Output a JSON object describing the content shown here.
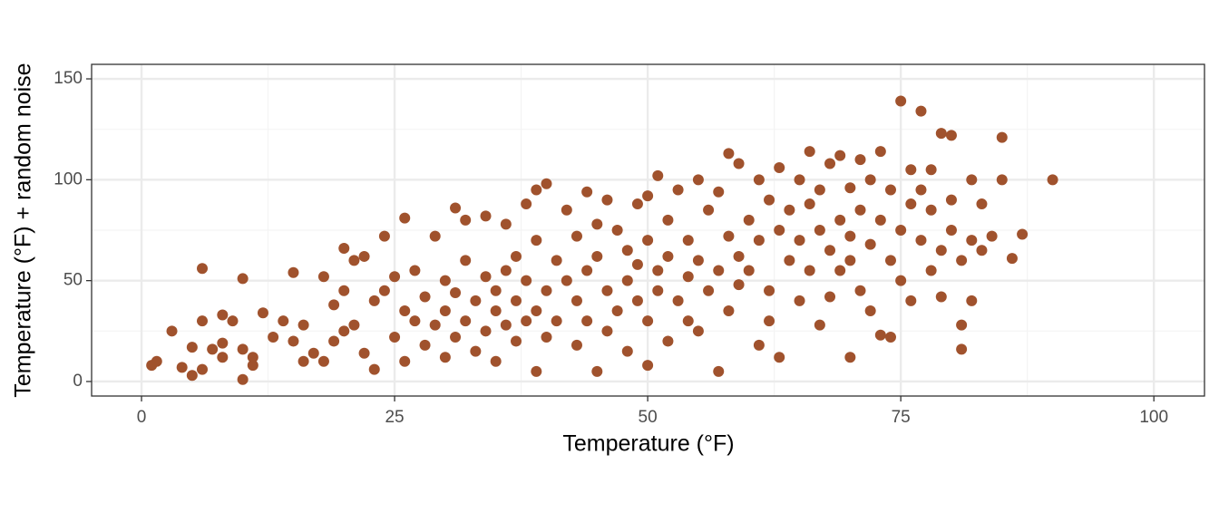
{
  "chart_data": {
    "type": "scatter",
    "x_label": "Temperature (°F)",
    "y_label": "Temperature (°F) + random noise",
    "color": "#a0522d",
    "xlim": [
      -4.93,
      105.0
    ],
    "ylim": [
      -7.2,
      157.2
    ],
    "xticks": [
      0,
      25,
      50,
      75,
      100
    ],
    "yticks": [
      0,
      50,
      100,
      150
    ],
    "x_minor_grid": [
      12.5,
      37.5,
      62.5,
      87.5
    ],
    "y_minor_grid": [
      25,
      75,
      125
    ],
    "grid": true,
    "x": [
      1,
      1.5,
      3,
      4,
      5,
      5,
      6,
      6,
      6,
      7,
      8,
      8,
      8,
      9,
      10,
      10,
      10,
      11,
      11,
      12,
      13,
      14,
      15,
      15,
      16,
      16,
      17,
      18,
      18,
      19,
      19,
      20,
      20,
      20,
      21,
      21,
      22,
      22,
      23,
      23,
      24,
      24,
      25,
      25,
      26,
      26,
      26,
      27,
      27,
      28,
      28,
      29,
      29,
      30,
      30,
      30,
      31,
      31,
      31,
      32,
      32,
      32,
      33,
      33,
      34,
      34,
      34,
      35,
      35,
      35,
      36,
      36,
      36,
      37,
      37,
      37,
      38,
      38,
      38,
      39,
      39,
      39,
      39,
      40,
      40,
      40,
      41,
      41,
      42,
      42,
      43,
      43,
      43,
      44,
      44,
      44,
      45,
      45,
      45,
      46,
      46,
      46,
      47,
      47,
      48,
      48,
      48,
      49,
      49,
      49,
      50,
      50,
      50,
      50,
      51,
      51,
      51,
      52,
      52,
      52,
      53,
      53,
      54,
      54,
      54,
      55,
      55,
      55,
      56,
      56,
      57,
      57,
      57,
      58,
      58,
      58,
      59,
      59,
      59,
      60,
      60,
      61,
      61,
      61,
      62,
      62,
      62,
      63,
      63,
      63,
      64,
      64,
      65,
      65,
      65,
      66,
      66,
      66,
      67,
      67,
      67,
      68,
      68,
      68,
      69,
      69,
      69,
      70,
      70,
      70,
      70,
      71,
      71,
      71,
      72,
      72,
      72,
      73,
      73,
      73,
      74,
      74,
      74,
      75,
      75,
      75,
      76,
      76,
      76,
      77,
      77,
      77,
      78,
      78,
      78,
      79,
      79,
      79,
      80,
      80,
      80,
      81,
      81,
      81,
      82,
      82,
      82,
      83,
      83,
      84,
      85,
      85,
      86,
      87,
      90
    ],
    "values": [
      8,
      10,
      25,
      7,
      3,
      17,
      6,
      30,
      56,
      16,
      19,
      33,
      12,
      30,
      1,
      16,
      51,
      8,
      12,
      34,
      22,
      30,
      54,
      20,
      10,
      28,
      14,
      52,
      10,
      38,
      20,
      66,
      45,
      25,
      28,
      60,
      62,
      14,
      6,
      40,
      45,
      72,
      52,
      22,
      81,
      35,
      10,
      30,
      55,
      42,
      18,
      72,
      28,
      50,
      35,
      12,
      86,
      44,
      22,
      80,
      60,
      30,
      40,
      15,
      82,
      52,
      25,
      45,
      35,
      10,
      78,
      28,
      55,
      40,
      20,
      62,
      88,
      30,
      50,
      95,
      70,
      5,
      35,
      98,
      45,
      22,
      60,
      30,
      85,
      50,
      40,
      72,
      18,
      94,
      55,
      30,
      78,
      62,
      5,
      90,
      45,
      25,
      75,
      35,
      65,
      50,
      15,
      88,
      40,
      58,
      92,
      70,
      30,
      8,
      102,
      55,
      45,
      80,
      20,
      62,
      95,
      40,
      70,
      52,
      30,
      100,
      60,
      25,
      85,
      45,
      94,
      5,
      55,
      113,
      72,
      35,
      108,
      62,
      48,
      80,
      55,
      100,
      18,
      70,
      90,
      45,
      30,
      106,
      75,
      12,
      85,
      60,
      100,
      70,
      40,
      114,
      88,
      55,
      95,
      28,
      75,
      108,
      65,
      42,
      112,
      80,
      55,
      96,
      72,
      12,
      60,
      110,
      85,
      45,
      100,
      68,
      35,
      114,
      80,
      23,
      95,
      60,
      22,
      139,
      75,
      50,
      105,
      88,
      40,
      134,
      70,
      95,
      85,
      55,
      105,
      123,
      65,
      42,
      122,
      90,
      75,
      60,
      28,
      16,
      100,
      70,
      40,
      88,
      65,
      72,
      121,
      100,
      61,
      73,
      100
    ]
  }
}
